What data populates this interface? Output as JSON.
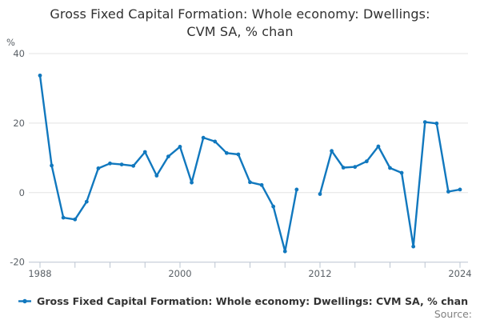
{
  "title": {
    "line1": "Gross Fixed Capital Formation: Whole economy: Dwellings:",
    "line2": "CVM SA, % chan"
  },
  "y_axis": {
    "unit_label": "%",
    "tick_labels": [
      "40",
      "20",
      "0",
      "-20"
    ]
  },
  "x_axis": {
    "tick_labels": [
      "1988",
      "2000",
      "2012",
      "2024"
    ]
  },
  "legend": {
    "label": "Gross Fixed Capital Formation: Whole economy: Dwellings: CVM SA, % chan"
  },
  "source": {
    "label": "Source:"
  },
  "colors": {
    "line": "#1178be",
    "grid": "#e3e3e3",
    "axis": "#bac4d0",
    "tick_label": "#5a6066",
    "title_text": "#303030",
    "legend_text": "#333333",
    "source_text": "#808080"
  },
  "chart_data": {
    "type": "line",
    "title": "Gross Fixed Capital Formation: Whole economy: Dwellings: CVM SA, % chan",
    "xlabel": "",
    "ylabel": "%",
    "xlim": [
      1988,
      2024
    ],
    "ylim": [
      -20,
      40
    ],
    "y_ticks": [
      40,
      20,
      0,
      -20
    ],
    "x_tick_labels": [
      1988,
      2000,
      2012,
      2024
    ],
    "x_tick_step": 3,
    "grid": "horizontal",
    "legend_position": "bottom-left",
    "series": [
      {
        "name": "Gross Fixed Capital Formation: Whole economy: Dwellings: CVM SA, % chan",
        "x": [
          1988,
          1989,
          1990,
          1991,
          1992,
          1993,
          1994,
          1995,
          1996,
          1997,
          1998,
          1999,
          2000,
          2001,
          2002,
          2003,
          2004,
          2005,
          2006,
          2007,
          2008,
          2009,
          2010,
          2011,
          2012,
          2013,
          2014,
          2015,
          2016,
          2017,
          2018,
          2019,
          2020,
          2021,
          2022,
          2023,
          2024
        ],
        "values": [
          33.7,
          7.8,
          -7.2,
          -7.7,
          -2.6,
          7.0,
          8.4,
          8.1,
          7.7,
          11.7,
          4.9,
          10.4,
          13.2,
          2.9,
          15.8,
          14.7,
          11.4,
          11.0,
          3.0,
          2.2,
          -4.0,
          -16.9,
          0.9,
          null,
          -0.4,
          12.0,
          7.2,
          7.4,
          9.0,
          13.3,
          7.1,
          5.7,
          -15.5,
          20.3,
          19.9,
          0.3,
          0.9
        ]
      }
    ]
  }
}
